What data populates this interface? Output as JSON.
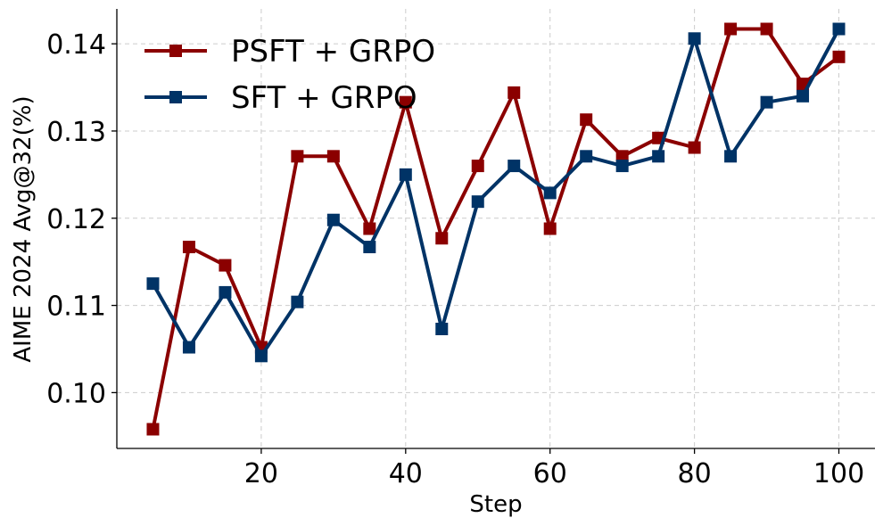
{
  "chart_data": {
    "type": "line",
    "xlabel": "Step",
    "ylabel": "AIME 2024 Avg@32(%)",
    "xlim": [
      0,
      105
    ],
    "ylim": [
      0.0936,
      0.144
    ],
    "xticks": [
      20,
      40,
      60,
      80,
      100
    ],
    "yticks": [
      0.1,
      0.11,
      0.12,
      0.13,
      0.14
    ],
    "ytick_labels": [
      "0.10",
      "0.11",
      "0.12",
      "0.13",
      "0.14"
    ],
    "grid": true,
    "legend_position": "top-left",
    "x": [
      5,
      10,
      15,
      20,
      25,
      30,
      35,
      40,
      45,
      50,
      55,
      60,
      65,
      70,
      75,
      80,
      85,
      90,
      95,
      100
    ],
    "series": [
      {
        "name": "PSFT + GRPO",
        "color": "#8b0000",
        "marker": "square",
        "values": [
          0.0958,
          0.1167,
          0.1146,
          0.1052,
          0.1271,
          0.1271,
          0.1188,
          0.1333,
          0.1177,
          0.126,
          0.1344,
          0.1188,
          0.1313,
          0.1271,
          0.1292,
          0.1281,
          0.1417,
          0.1417,
          0.1354,
          0.1385
        ]
      },
      {
        "name": "SFT + GRPO",
        "color": "#003366",
        "marker": "square",
        "values": [
          0.1125,
          0.1052,
          0.1115,
          0.1042,
          0.1104,
          0.1198,
          0.1167,
          0.125,
          0.1073,
          0.1219,
          0.126,
          0.1229,
          0.1271,
          0.126,
          0.1271,
          0.1406,
          0.1271,
          0.1333,
          0.134,
          0.1417
        ]
      }
    ]
  }
}
